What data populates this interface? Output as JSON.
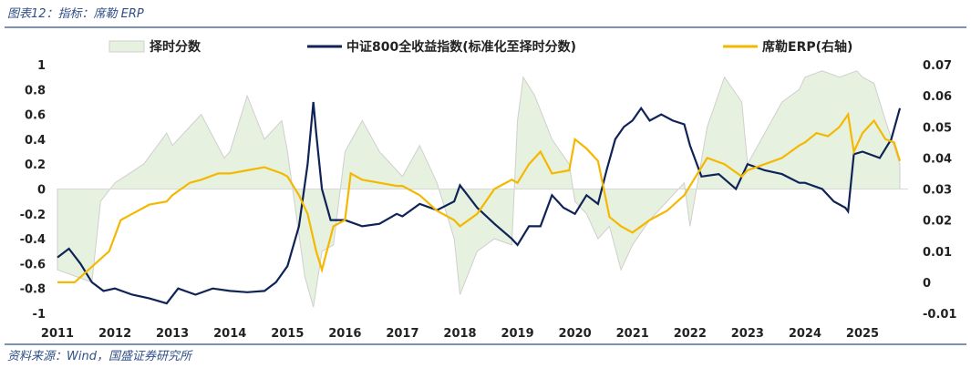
{
  "header": {
    "title": "图表12：指标：席勒 ERP"
  },
  "footer": {
    "source": "资料来源：Wind，国盛证券研究所"
  },
  "colors": {
    "area_fill": "#e6f2df",
    "area_stroke": "#cfcfcf",
    "index_line": "#0f2357",
    "erp_line": "#f5b800",
    "rule": "#2f4f86"
  },
  "chart_data": {
    "type": "line",
    "legend_position": "top",
    "grid": false,
    "x_ticks": [
      "2011",
      "2012",
      "2013",
      "2014",
      "2015",
      "2016",
      "2017",
      "2018",
      "2019",
      "2020",
      "2021",
      "2022",
      "2023",
      "2024",
      "2025"
    ],
    "y_left": {
      "ylim": [
        -1,
        1
      ],
      "ticks": [
        "1",
        "0.8",
        "0.6",
        "0.4",
        "0.2",
        "0",
        "-0.2",
        "-0.4",
        "-0.6",
        "-0.8",
        "-1"
      ]
    },
    "y_right": {
      "ylim": [
        -0.01,
        0.07
      ],
      "ticks": [
        "0.07",
        "0.06",
        "0.05",
        "0.04",
        "0.03",
        "0.02",
        "0.01",
        "0",
        "-0.01"
      ]
    },
    "series": [
      {
        "name": "择时分数",
        "type": "area",
        "axis": "left",
        "x": [
          2011.0,
          2011.6,
          2011.75,
          2012.0,
          2012.5,
          2012.9,
          2013.0,
          2013.5,
          2013.9,
          2014.0,
          2014.3,
          2014.6,
          2014.9,
          2015.0,
          2015.3,
          2015.45,
          2015.6,
          2015.8,
          2016.0,
          2016.3,
          2016.6,
          2016.9,
          2017.0,
          2017.3,
          2017.6,
          2017.9,
          2018.0,
          2018.3,
          2018.6,
          2018.9,
          2019.0,
          2019.1,
          2019.3,
          2019.6,
          2019.9,
          2020.0,
          2020.2,
          2020.4,
          2020.6,
          2020.8,
          2021.0,
          2021.3,
          2021.6,
          2021.9,
          2022.0,
          2022.3,
          2022.6,
          2022.9,
          2023.0,
          2023.3,
          2023.6,
          2023.9,
          2024.0,
          2024.3,
          2024.6,
          2024.9,
          2025.0,
          2025.2,
          2025.4,
          2025.65
        ],
        "y": [
          -0.65,
          -0.75,
          -0.1,
          0.05,
          0.2,
          0.45,
          0.35,
          0.6,
          0.25,
          0.3,
          0.75,
          0.4,
          0.55,
          0.3,
          -0.7,
          -0.95,
          -0.5,
          -0.45,
          0.3,
          0.55,
          0.3,
          0.15,
          0.1,
          0.35,
          0.05,
          -0.4,
          -0.85,
          -0.5,
          -0.4,
          -0.45,
          0.55,
          0.9,
          0.75,
          0.4,
          0.2,
          -0.1,
          -0.2,
          -0.4,
          -0.3,
          -0.65,
          -0.45,
          -0.25,
          -0.1,
          0.05,
          -0.3,
          0.5,
          0.9,
          0.7,
          0.2,
          0.45,
          0.7,
          0.8,
          0.9,
          0.95,
          0.9,
          0.95,
          0.9,
          0.85,
          0.55,
          0.2
        ]
      },
      {
        "name": "中证800全收益指数(标准化至择时分数)",
        "type": "line",
        "axis": "left",
        "x": [
          2011.0,
          2011.2,
          2011.4,
          2011.6,
          2011.8,
          2012.0,
          2012.3,
          2012.6,
          2012.9,
          2013.1,
          2013.4,
          2013.7,
          2014.0,
          2014.3,
          2014.6,
          2014.8,
          2015.0,
          2015.2,
          2015.35,
          2015.45,
          2015.5,
          2015.6,
          2015.75,
          2016.0,
          2016.3,
          2016.6,
          2016.9,
          2017.0,
          2017.3,
          2017.6,
          2017.9,
          2018.0,
          2018.3,
          2018.6,
          2018.9,
          2019.0,
          2019.2,
          2019.4,
          2019.6,
          2019.8,
          2020.0,
          2020.2,
          2020.4,
          2020.55,
          2020.7,
          2020.85,
          2021.0,
          2021.15,
          2021.3,
          2021.5,
          2021.7,
          2021.9,
          2022.0,
          2022.2,
          2022.5,
          2022.8,
          2023.0,
          2023.3,
          2023.6,
          2023.9,
          2024.0,
          2024.3,
          2024.5,
          2024.7,
          2024.75,
          2024.85,
          2025.0,
          2025.3,
          2025.5,
          2025.65
        ],
        "y": [
          -0.55,
          -0.48,
          -0.6,
          -0.75,
          -0.82,
          -0.8,
          -0.85,
          -0.88,
          -0.92,
          -0.8,
          -0.85,
          -0.8,
          -0.82,
          -0.83,
          -0.82,
          -0.75,
          -0.62,
          -0.3,
          0.2,
          0.7,
          0.45,
          0.0,
          -0.25,
          -0.25,
          -0.3,
          -0.28,
          -0.2,
          -0.22,
          -0.12,
          -0.17,
          -0.1,
          0.03,
          -0.15,
          -0.28,
          -0.4,
          -0.45,
          -0.3,
          -0.3,
          -0.05,
          -0.15,
          -0.2,
          -0.05,
          -0.12,
          0.15,
          0.4,
          0.5,
          0.55,
          0.65,
          0.55,
          0.6,
          0.55,
          0.52,
          0.35,
          0.1,
          0.12,
          0.0,
          0.2,
          0.15,
          0.12,
          0.05,
          0.05,
          0.0,
          -0.1,
          -0.15,
          -0.18,
          0.28,
          0.3,
          0.25,
          0.4,
          0.65
        ]
      },
      {
        "name": "席勒ERP(右轴)",
        "type": "line",
        "axis": "right",
        "x": [
          2011.0,
          2011.3,
          2011.6,
          2011.9,
          2012.1,
          2012.3,
          2012.6,
          2012.9,
          2013.0,
          2013.3,
          2013.5,
          2013.8,
          2014.0,
          2014.3,
          2014.6,
          2014.9,
          2015.0,
          2015.2,
          2015.35,
          2015.5,
          2015.6,
          2015.8,
          2016.0,
          2016.1,
          2016.3,
          2016.6,
          2016.9,
          2017.0,
          2017.3,
          2017.6,
          2017.9,
          2018.0,
          2018.3,
          2018.6,
          2018.9,
          2019.0,
          2019.2,
          2019.4,
          2019.6,
          2019.9,
          2020.0,
          2020.2,
          2020.4,
          2020.6,
          2020.8,
          2021.0,
          2021.3,
          2021.6,
          2021.9,
          2022.0,
          2022.3,
          2022.6,
          2022.9,
          2023.0,
          2023.3,
          2023.6,
          2023.9,
          2024.0,
          2024.2,
          2024.4,
          2024.6,
          2024.75,
          2024.85,
          2025.0,
          2025.2,
          2025.4,
          2025.55,
          2025.65
        ],
        "y": [
          0.0,
          0.0,
          0.005,
          0.01,
          0.02,
          0.022,
          0.025,
          0.026,
          0.028,
          0.032,
          0.033,
          0.035,
          0.035,
          0.036,
          0.037,
          0.035,
          0.034,
          0.028,
          0.022,
          0.01,
          0.004,
          0.018,
          0.02,
          0.035,
          0.033,
          0.032,
          0.031,
          0.031,
          0.028,
          0.023,
          0.02,
          0.018,
          0.022,
          0.03,
          0.033,
          0.032,
          0.038,
          0.042,
          0.035,
          0.036,
          0.046,
          0.043,
          0.039,
          0.021,
          0.018,
          0.016,
          0.02,
          0.023,
          0.028,
          0.031,
          0.04,
          0.038,
          0.034,
          0.036,
          0.038,
          0.04,
          0.044,
          0.045,
          0.048,
          0.047,
          0.05,
          0.054,
          0.042,
          0.048,
          0.052,
          0.046,
          0.045,
          0.039
        ]
      }
    ]
  }
}
